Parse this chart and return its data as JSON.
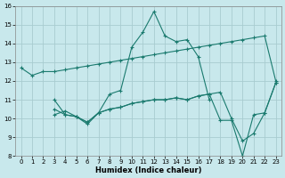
{
  "xlabel": "Humidex (Indice chaleur)",
  "background_color": "#c8e8ec",
  "grid_color": "#a8ccd0",
  "line_color": "#1a7a6e",
  "xlim": [
    -0.5,
    23.5
  ],
  "ylim": [
    8,
    16
  ],
  "xticks": [
    0,
    1,
    2,
    3,
    4,
    5,
    6,
    7,
    8,
    9,
    10,
    11,
    12,
    13,
    14,
    15,
    16,
    17,
    18,
    19,
    20,
    21,
    22,
    23
  ],
  "yticks": [
    8,
    9,
    10,
    11,
    12,
    13,
    14,
    15,
    16
  ],
  "series": [
    {
      "x": [
        0,
        1,
        2,
        3,
        4,
        5,
        6,
        7,
        8,
        9,
        10,
        11,
        12,
        13,
        14,
        15,
        16,
        17,
        18,
        19,
        20,
        21,
        22,
        23
      ],
      "y": [
        12.7,
        12.3,
        12.5,
        12.5,
        12.6,
        12.7,
        12.8,
        12.9,
        13.0,
        13.1,
        13.2,
        13.3,
        13.4,
        13.5,
        13.6,
        13.7,
        13.8,
        13.9,
        14.0,
        14.1,
        14.2,
        14.3,
        14.4,
        12.0
      ]
    },
    {
      "x": [
        3,
        4,
        5,
        6,
        7,
        8,
        9,
        10,
        11,
        12,
        13,
        14,
        15,
        16,
        17
      ],
      "y": [
        11.0,
        10.2,
        10.1,
        9.7,
        10.3,
        11.3,
        11.5,
        13.8,
        14.6,
        15.7,
        14.4,
        14.1,
        14.2,
        13.3,
        11.0
      ]
    },
    {
      "x": [
        3,
        4,
        5,
        6,
        7,
        8,
        9,
        10,
        11,
        12,
        13,
        14,
        15,
        16,
        17,
        18,
        19,
        20,
        21,
        22,
        23
      ],
      "y": [
        10.5,
        10.2,
        10.1,
        9.8,
        10.3,
        10.5,
        10.6,
        10.8,
        10.9,
        11.0,
        11.0,
        11.1,
        11.0,
        11.2,
        11.3,
        11.4,
        10.0,
        8.8,
        9.2,
        10.3,
        11.9
      ]
    },
    {
      "x": [
        3,
        4,
        5,
        6,
        7,
        8,
        9,
        10,
        11,
        12,
        13,
        14,
        15,
        16,
        17,
        18,
        19,
        20,
        21,
        22,
        23
      ],
      "y": [
        10.2,
        10.4,
        10.1,
        9.8,
        10.3,
        10.5,
        10.6,
        10.8,
        10.9,
        11.0,
        11.0,
        11.1,
        11.0,
        11.2,
        11.3,
        9.9,
        9.9,
        8.0,
        10.2,
        10.3,
        11.9
      ]
    }
  ]
}
